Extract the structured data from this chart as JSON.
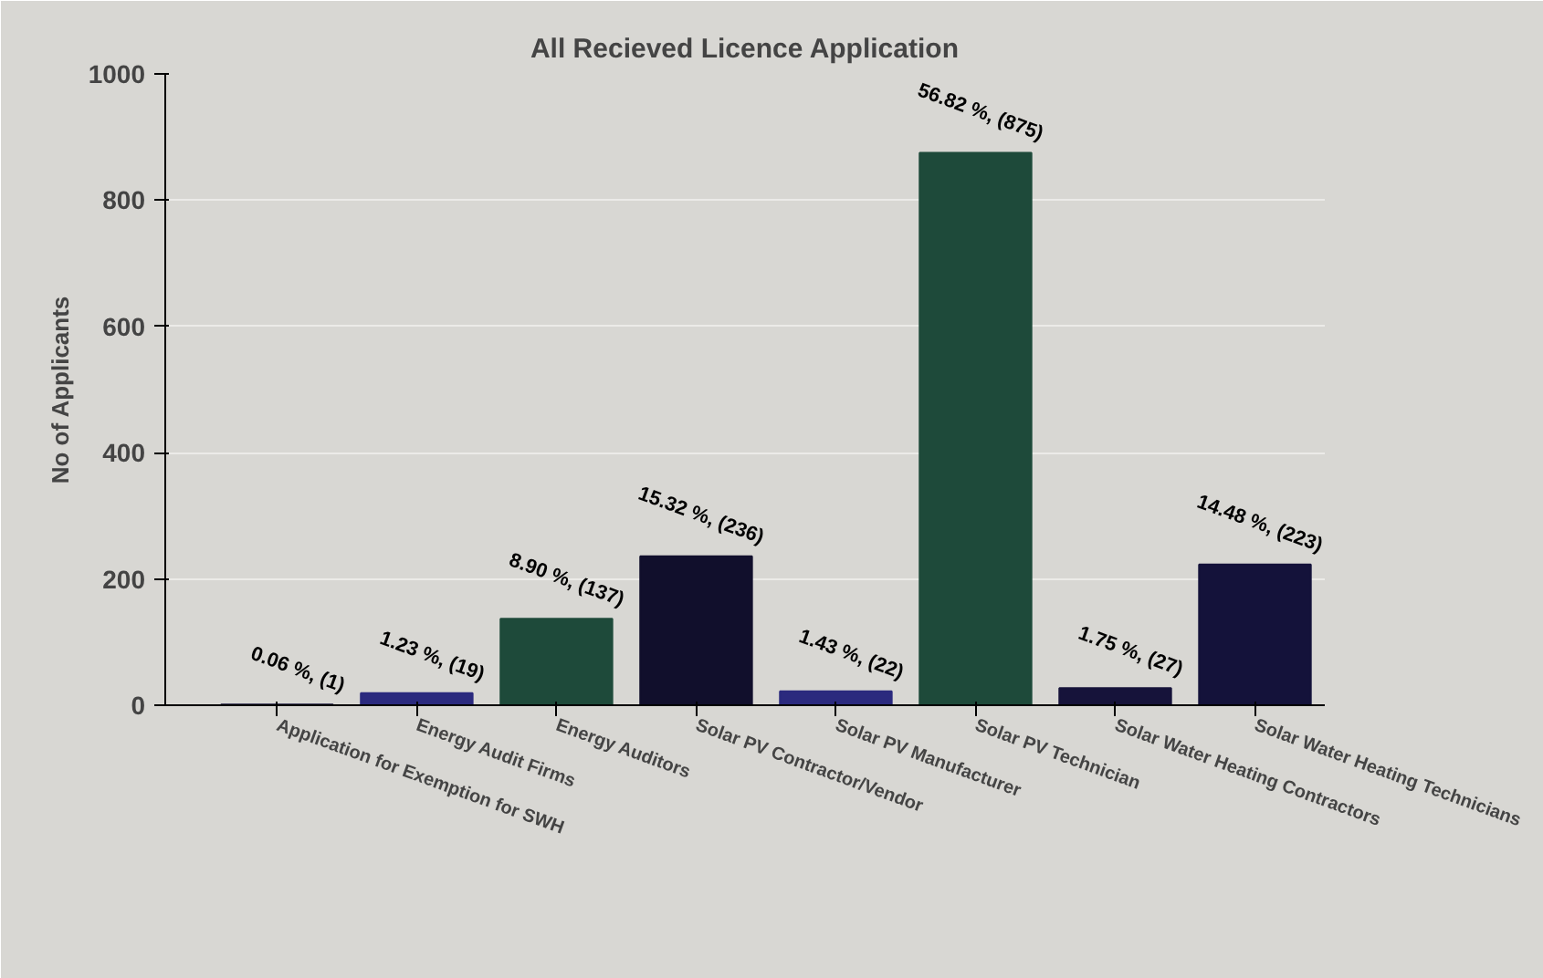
{
  "chart_data": {
    "type": "bar",
    "title": "All Recieved Licence Application",
    "ylabel": "No of Applicants",
    "categories": [
      "Application for Exemption for SWH",
      "Energy Audit Firms",
      "Energy Auditors",
      "Solar PV Contractor/Vendor",
      "Solar PV Manufacturer",
      "Solar PV Technician",
      "Solar Water Heating Contractors",
      "Solar Water Heating Technicians"
    ],
    "values": [
      1,
      19,
      137,
      236,
      22,
      875,
      27,
      223
    ],
    "colors": [
      "#16133a",
      "#2b2a7e",
      "#1e4a3a",
      "#110f2c",
      "#2b2a7e",
      "#1e4a3a",
      "#16133a",
      "#14123a"
    ],
    "value_labels": [
      "0.06 %, (1)",
      "1.23 %, (19)",
      "8.90 %, (137)",
      "15.32 %, (236)",
      "1.43 %, (22)",
      "56.82 %, (875)",
      "1.75 %, (27)",
      "14.48 %, (223)"
    ],
    "ylim": [
      0,
      1000
    ],
    "yticks": [
      0,
      200,
      400,
      600,
      800,
      1000
    ],
    "grid": "y"
  }
}
